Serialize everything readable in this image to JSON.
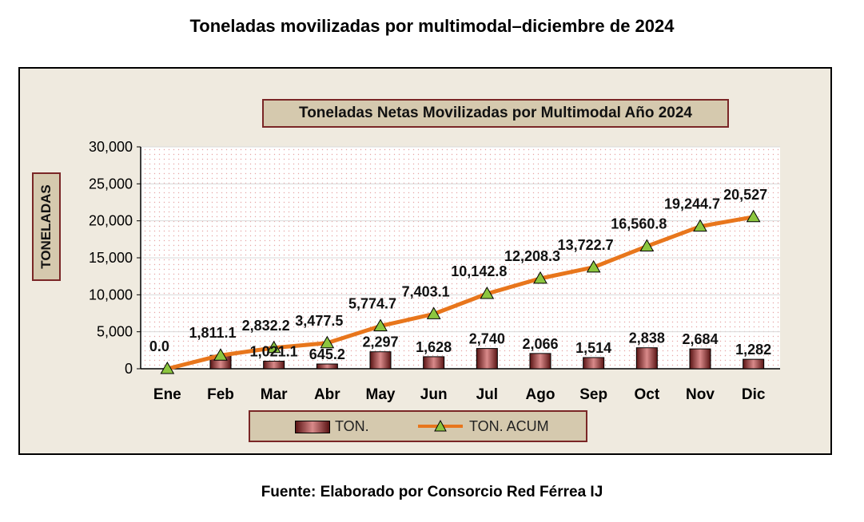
{
  "page_title": "Toneladas movilizadas por multimodal–diciembre de 2024",
  "footer": "Fuente: Elaborado por Consorcio Red Férrea IJ",
  "colors": {
    "bar": "#b03a3a",
    "line": "#e8761c",
    "marker": "#8cc63f",
    "frame_bg": "#efeadf",
    "box_bg": "#d5c9ae",
    "box_border": "#7a2626"
  },
  "chart_data": {
    "type": "bar+line",
    "title": "Toneladas Netas Movilizadas por Multimodal Año 2024",
    "ylabel": "TONELADAS",
    "xlabel": "",
    "categories": [
      "Ene",
      "Feb",
      "Mar",
      "Abr",
      "May",
      "Jun",
      "Jul",
      "Ago",
      "Sep",
      "Oct",
      "Nov",
      "Dic"
    ],
    "ylim": [
      0,
      30000
    ],
    "yticks": [
      "0",
      "5,000",
      "10,000",
      "15,000",
      "20,000",
      "25,000",
      "30,000"
    ],
    "ytick_values": [
      0,
      5000,
      10000,
      15000,
      20000,
      25000,
      30000
    ],
    "grid": true,
    "legend_position": "bottom",
    "series": [
      {
        "name": "TON.",
        "kind": "bar",
        "values": [
          0,
          1811.1,
          1021.1,
          645.2,
          2297,
          1628,
          2740,
          2066,
          1514,
          2838,
          2684,
          1282
        ],
        "labels": [
          "",
          "",
          "1,021.1",
          "645.2",
          "2,297",
          "1,628",
          "2,740",
          "2,066",
          "1,514",
          "2,838",
          "2,684",
          "1,282"
        ]
      },
      {
        "name": "TON. ACUM",
        "kind": "line",
        "values": [
          0,
          1811.1,
          2832.2,
          3477.5,
          5774.7,
          7403.1,
          10142.8,
          12208.3,
          13722.7,
          16560.8,
          19244.7,
          20527
        ],
        "labels": [
          "0.0",
          "1,811.1",
          "2,832.2",
          "3,477.5",
          "5,774.7",
          "7,403.1",
          "10,142.8",
          "12,208.3",
          "13,722.7",
          "16,560.8",
          "19,244.7",
          "20,527"
        ]
      }
    ]
  }
}
